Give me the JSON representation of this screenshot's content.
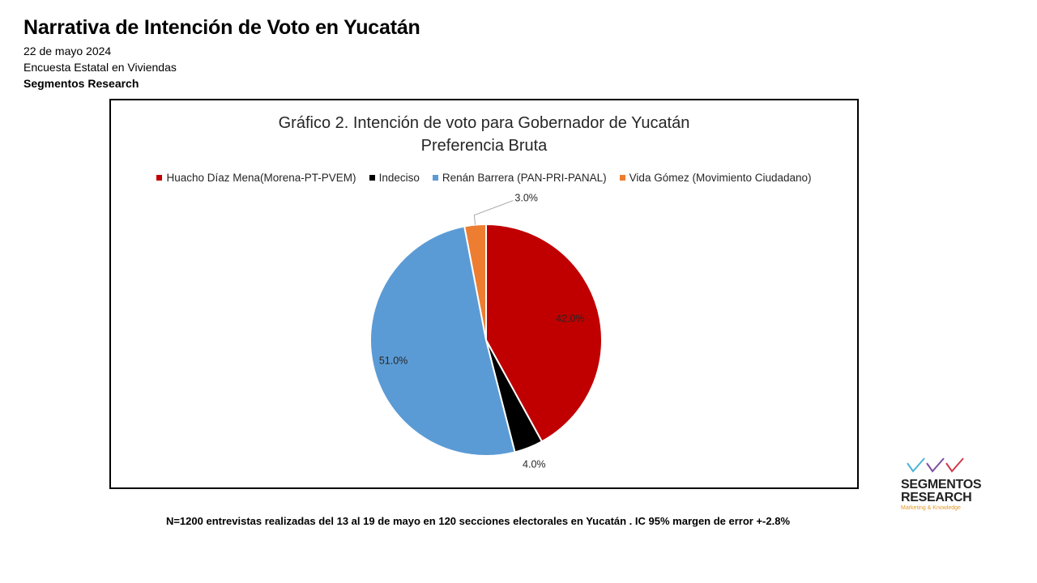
{
  "header": {
    "title": "Narrativa de Intención de Voto en Yucatán",
    "date": "22 de mayo 2024",
    "survey": "Encuesta Estatal  en Viviendas",
    "org": "Segmentos Research"
  },
  "chart_data": {
    "type": "pie",
    "title": "Gráfico 2. Intención de voto para Gobernador de Yucatán",
    "subtitle": "Preferencia Bruta",
    "legend_position": "top",
    "categories": [
      "Huacho Díaz Mena(Morena-PT-PVEM)",
      "Indeciso",
      "Renán Barrera (PAN-PRI-PANAL)",
      "Vida Gómez (Movimiento Ciudadano)"
    ],
    "values": [
      42.0,
      4.0,
      51.0,
      3.0
    ],
    "labels": [
      "42.0%",
      "4.0%",
      "51.0%",
      "3.0%"
    ],
    "colors": [
      "#C00000",
      "#000000",
      "#5B9BD5",
      "#ED7D31"
    ]
  },
  "footer": {
    "note": "N=1200  entrevistas realizadas del 13 al 19 de mayo  en 120 secciones electorales en Yucatán . IC 95% margen de error +-2.8%"
  },
  "logo": {
    "line1": "SEGMENTOS",
    "line2": "RESEARCH",
    "tagline": "Marketing & Knowledge",
    "check_colors": [
      "#4BB3D8",
      "#7B4FA0",
      "#D0394A"
    ]
  }
}
